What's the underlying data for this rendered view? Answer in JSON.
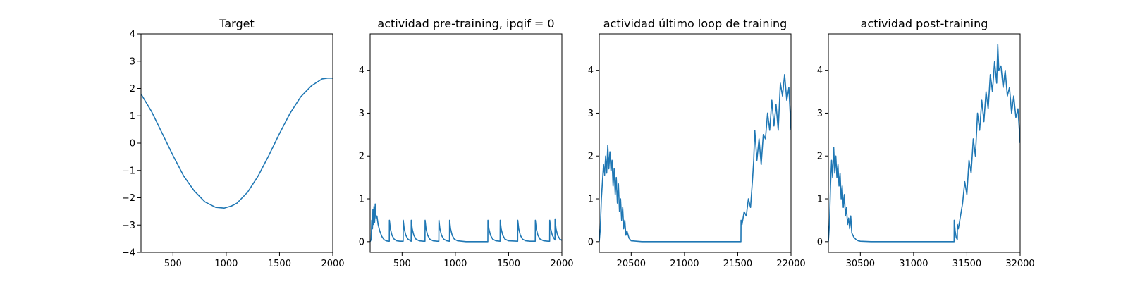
{
  "chart_data": [
    {
      "type": "line",
      "title": "Target",
      "xlim": [
        200,
        2000
      ],
      "ylim": [
        -4,
        4
      ],
      "xticks": [
        500,
        1000,
        1500,
        2000
      ],
      "xtick_labels": [
        "500",
        "1000",
        "1500",
        "2000"
      ],
      "yticks": [
        -4,
        -3,
        -2,
        -1,
        0,
        1,
        2,
        3,
        4
      ],
      "ytick_labels": [
        "−4",
        "−3",
        "−2",
        "−1",
        "0",
        "1",
        "2",
        "3",
        "4"
      ],
      "grid": false,
      "series": [
        {
          "color": "#1f77b4",
          "x": [
            200,
            300,
            400,
            500,
            600,
            700,
            800,
            900,
            980,
            1050,
            1100,
            1200,
            1300,
            1400,
            1500,
            1600,
            1700,
            1800,
            1900,
            1950,
            2000
          ],
          "y": [
            1.8,
            1.15,
            0.35,
            -0.45,
            -1.2,
            -1.75,
            -2.15,
            -2.35,
            -2.38,
            -2.3,
            -2.2,
            -1.8,
            -1.2,
            -0.45,
            0.35,
            1.1,
            1.7,
            2.1,
            2.35,
            2.38,
            2.38
          ]
        }
      ]
    },
    {
      "type": "line",
      "title": "actividad pre-training, ipqif = 0",
      "xlim": [
        200,
        2000
      ],
      "ylim": [
        -0.25,
        4.85
      ],
      "xticks": [
        500,
        1000,
        1500,
        2000
      ],
      "xtick_labels": [
        "500",
        "1000",
        "1500",
        "2000"
      ],
      "yticks": [
        0,
        1,
        2,
        3,
        4
      ],
      "ytick_labels": [
        "0",
        "1",
        "2",
        "3",
        "4"
      ],
      "grid": false,
      "series": [
        {
          "color": "#1f77b4",
          "x": [
            200,
            210,
            215,
            222,
            226,
            232,
            236,
            242,
            248,
            256,
            264,
            275,
            290,
            310,
            330,
            350,
            370,
            380,
            381,
            390,
            405,
            425,
            450,
            480,
            505,
            510,
            511,
            520,
            535,
            555,
            580,
            585,
            586,
            595,
            610,
            630,
            660,
            700,
            715,
            716,
            725,
            740,
            760,
            790,
            830,
            845,
            846,
            855,
            870,
            890,
            920,
            945,
            946,
            955,
            970,
            990,
            1020,
            1100,
            1200,
            1305,
            1306,
            1315,
            1330,
            1350,
            1380,
            1420,
            1421,
            1430,
            1445,
            1465,
            1500,
            1585,
            1586,
            1595,
            1610,
            1630,
            1660,
            1700,
            1750,
            1751,
            1760,
            1775,
            1795,
            1830,
            1870,
            1885,
            1886,
            1895,
            1910,
            1930,
            1935,
            1936,
            1945,
            1960,
            1980,
            2000
          ],
          "y": [
            0,
            0.05,
            0.5,
            0.3,
            0.75,
            0.4,
            0.82,
            0.45,
            0.88,
            0.55,
            0.6,
            0.4,
            0.25,
            0.12,
            0.05,
            0.02,
            0.01,
            0.01,
            0.5,
            0.3,
            0.15,
            0.06,
            0.02,
            0.01,
            0.01,
            0.01,
            0.5,
            0.3,
            0.15,
            0.06,
            0.02,
            0.01,
            0.5,
            0.3,
            0.15,
            0.06,
            0.02,
            0.01,
            0.01,
            0.5,
            0.3,
            0.15,
            0.06,
            0.02,
            0.01,
            0.01,
            0.5,
            0.3,
            0.15,
            0.06,
            0.02,
            0.01,
            0.5,
            0.3,
            0.15,
            0.06,
            0.02,
            0,
            0,
            0,
            0.5,
            0.3,
            0.15,
            0.06,
            0.02,
            0.01,
            0.5,
            0.3,
            0.15,
            0.06,
            0.02,
            0.01,
            0.5,
            0.3,
            0.15,
            0.06,
            0.02,
            0.01,
            0.01,
            0.5,
            0.3,
            0.15,
            0.06,
            0.02,
            0.01,
            0.01,
            0.5,
            0.3,
            0.15,
            0.06,
            0.04,
            0.53,
            0.3,
            0.15,
            0.06,
            0.03
          ]
        }
      ]
    },
    {
      "type": "line",
      "title": "actividad último loop de training",
      "xlim": [
        20200,
        22000
      ],
      "ylim": [
        -0.25,
        4.85
      ],
      "xticks": [
        20500,
        21000,
        21500,
        22000
      ],
      "xtick_labels": [
        "20500",
        "21000",
        "21500",
        "22000"
      ],
      "yticks": [
        0,
        1,
        2,
        3,
        4
      ],
      "ytick_labels": [
        "0",
        "1",
        "2",
        "3",
        "4"
      ],
      "grid": false,
      "series": [
        {
          "color": "#1f77b4",
          "x": [
            20200,
            20210,
            20220,
            20230,
            20240,
            20250,
            20260,
            20270,
            20280,
            20290,
            20300,
            20310,
            20320,
            20330,
            20340,
            20350,
            20360,
            20370,
            20380,
            20390,
            20400,
            20410,
            20420,
            20430,
            20440,
            20450,
            20460,
            20480,
            20500,
            20550,
            20600,
            20800,
            21000,
            21200,
            21400,
            21530,
            21531,
            21540,
            21560,
            21580,
            21600,
            21620,
            21640,
            21650,
            21660,
            21680,
            21700,
            21720,
            21740,
            21760,
            21780,
            21800,
            21820,
            21840,
            21860,
            21880,
            21900,
            21920,
            21940,
            21960,
            21980,
            22000
          ],
          "y": [
            0,
            0.3,
            1.0,
            1.4,
            1.8,
            1.55,
            2.0,
            1.6,
            2.25,
            1.7,
            2.1,
            1.65,
            1.9,
            1.3,
            1.7,
            1.1,
            1.5,
            0.9,
            1.35,
            0.7,
            1.0,
            0.5,
            0.8,
            0.3,
            0.5,
            0.15,
            0.25,
            0.08,
            0.02,
            0.01,
            0,
            0,
            0,
            0,
            0,
            0,
            0.5,
            0.4,
            0.7,
            0.6,
            1.0,
            0.8,
            1.5,
            1.9,
            2.6,
            1.9,
            2.4,
            1.8,
            2.5,
            2.4,
            3.0,
            2.6,
            3.3,
            2.7,
            3.2,
            2.6,
            3.7,
            3.4,
            3.9,
            3.3,
            3.6,
            2.6
          ]
        }
      ]
    },
    {
      "type": "line",
      "title": "actividad post-training",
      "xlim": [
        30200,
        32000
      ],
      "ylim": [
        -0.25,
        4.85
      ],
      "xticks": [
        30500,
        31000,
        31500,
        32000
      ],
      "xtick_labels": [
        "30500",
        "31000",
        "31500",
        "32000"
      ],
      "yticks": [
        0,
        1,
        2,
        3,
        4
      ],
      "ytick_labels": [
        "0",
        "1",
        "2",
        "3",
        "4"
      ],
      "grid": false,
      "series": [
        {
          "color": "#1f77b4",
          "x": [
            30200,
            30210,
            30220,
            30230,
            30240,
            30250,
            30260,
            30270,
            30280,
            30290,
            30300,
            30310,
            30320,
            30330,
            30340,
            30350,
            30360,
            30370,
            30380,
            30390,
            30400,
            30410,
            30420,
            30440,
            30460,
            30480,
            30500,
            30600,
            30800,
            31000,
            31200,
            31380,
            31381,
            31390,
            31400,
            31410,
            31411,
            31420,
            31440,
            31460,
            31480,
            31500,
            31520,
            31540,
            31560,
            31580,
            31600,
            31620,
            31640,
            31660,
            31680,
            31700,
            31720,
            31740,
            31760,
            31780,
            31790,
            31800,
            31820,
            31840,
            31860,
            31880,
            31900,
            31920,
            31940,
            31960,
            31980,
            32000
          ],
          "y": [
            0,
            0.4,
            1.3,
            1.9,
            1.5,
            2.2,
            1.6,
            2.0,
            1.5,
            1.8,
            1.3,
            1.6,
            1.0,
            1.3,
            0.8,
            1.1,
            0.6,
            0.8,
            0.4,
            0.55,
            0.3,
            0.6,
            0.2,
            0.1,
            0.05,
            0.02,
            0.01,
            0,
            0,
            0,
            0,
            0,
            0.5,
            0.25,
            0.1,
            0.05,
            0.4,
            0.3,
            0.6,
            0.9,
            1.4,
            1.1,
            1.9,
            1.6,
            2.4,
            2.0,
            3.0,
            2.6,
            3.3,
            2.8,
            3.5,
            3.1,
            3.9,
            3.5,
            4.2,
            3.7,
            4.6,
            4.0,
            4.1,
            3.6,
            4.0,
            3.4,
            3.6,
            3.0,
            3.4,
            2.9,
            3.1,
            2.3
          ]
        }
      ]
    }
  ]
}
